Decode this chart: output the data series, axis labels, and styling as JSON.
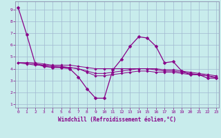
{
  "xlabel": "Windchill (Refroidissement éolien,°C)",
  "background_color": "#c8ecec",
  "grid_color": "#a0b8d0",
  "line_color": "#880088",
  "spine_color": "#8888aa",
  "x_ticks": [
    0,
    1,
    2,
    3,
    4,
    5,
    6,
    7,
    8,
    9,
    10,
    11,
    12,
    13,
    14,
    15,
    16,
    17,
    18,
    19,
    20,
    21,
    22,
    23
  ],
  "y_ticks": [
    1,
    2,
    3,
    4,
    5,
    6,
    7,
    8,
    9
  ],
  "xlim": [
    -0.3,
    23.3
  ],
  "ylim": [
    0.7,
    9.7
  ],
  "series": [
    {
      "x": [
        0,
        1,
        2,
        3,
        4,
        5,
        6,
        7,
        8,
        9,
        10,
        11,
        12,
        13,
        14,
        15,
        16,
        17,
        18,
        19,
        20,
        21,
        22,
        23
      ],
      "y": [
        9.2,
        6.9,
        4.4,
        4.2,
        4.1,
        4.1,
        4.0,
        3.3,
        2.3,
        1.5,
        1.5,
        3.9,
        4.8,
        5.9,
        6.7,
        6.6,
        5.9,
        4.5,
        4.6,
        3.8,
        3.5,
        3.5,
        3.2,
        3.2
      ]
    },
    {
      "x": [
        0,
        1,
        2,
        3,
        4,
        5,
        6,
        7,
        8,
        9,
        10,
        11,
        12,
        13,
        14,
        15,
        16,
        17,
        18,
        19,
        20,
        21,
        22,
        23
      ],
      "y": [
        4.5,
        4.5,
        4.5,
        4.4,
        4.3,
        4.3,
        4.3,
        4.2,
        4.1,
        4.0,
        4.0,
        4.0,
        4.0,
        4.0,
        4.0,
        4.0,
        4.0,
        3.9,
        3.9,
        3.8,
        3.7,
        3.6,
        3.5,
        3.4
      ]
    },
    {
      "x": [
        0,
        1,
        2,
        3,
        4,
        5,
        6,
        7,
        8,
        9,
        10,
        11,
        12,
        13,
        14,
        15,
        16,
        17,
        18,
        19,
        20,
        21,
        22,
        23
      ],
      "y": [
        4.5,
        4.5,
        4.4,
        4.3,
        4.2,
        4.2,
        4.1,
        4.0,
        3.8,
        3.6,
        3.6,
        3.7,
        3.8,
        3.9,
        4.0,
        4.0,
        3.9,
        3.8,
        3.8,
        3.7,
        3.6,
        3.5,
        3.4,
        3.3
      ]
    },
    {
      "x": [
        0,
        1,
        2,
        3,
        4,
        5,
        6,
        7,
        8,
        9,
        10,
        11,
        12,
        13,
        14,
        15,
        16,
        17,
        18,
        19,
        20,
        21,
        22,
        23
      ],
      "y": [
        4.5,
        4.4,
        4.3,
        4.3,
        4.2,
        4.1,
        4.1,
        4.0,
        3.7,
        3.4,
        3.4,
        3.5,
        3.6,
        3.7,
        3.8,
        3.8,
        3.7,
        3.7,
        3.7,
        3.6,
        3.5,
        3.5,
        3.4,
        3.2
      ]
    }
  ]
}
